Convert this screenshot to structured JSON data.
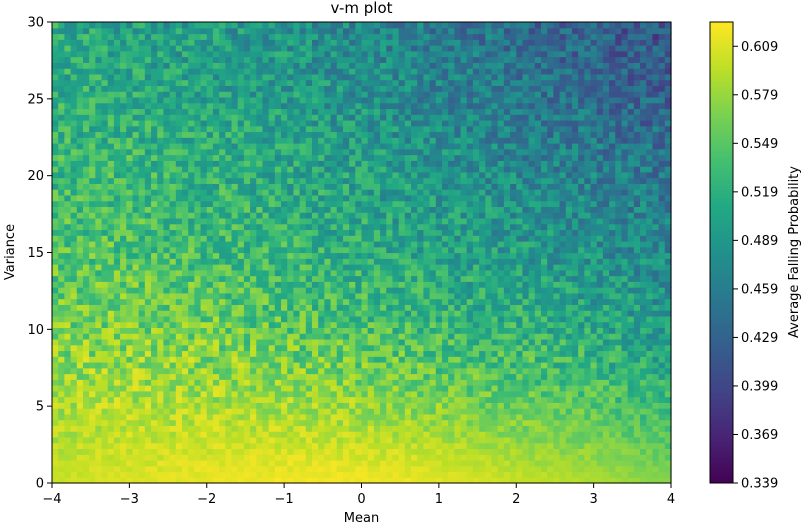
{
  "chart_data": {
    "type": "heatmap",
    "title": "v-m plot",
    "xlabel": "Mean",
    "ylabel": "Variance",
    "colorbar_label": "Average Falling Probability",
    "colormap": "viridis",
    "xlim": [
      -4,
      4
    ],
    "ylim": [
      0,
      30
    ],
    "x_ticks": [
      -4,
      -3,
      -2,
      -1,
      0,
      1,
      2,
      3,
      4
    ],
    "x_tick_labels": [
      "−4",
      "−3",
      "−2",
      "−1",
      "0",
      "1",
      "2",
      "3",
      "4"
    ],
    "y_ticks": [
      0,
      5,
      10,
      15,
      20,
      25,
      30
    ],
    "y_tick_labels": [
      "0",
      "5",
      "10",
      "15",
      "20",
      "25",
      "30"
    ],
    "colorbar_ticks": [
      0.339,
      0.369,
      0.399,
      0.429,
      0.459,
      0.489,
      0.519,
      0.549,
      0.579,
      0.609
    ],
    "colorbar_tick_labels": [
      "0.339",
      "0.369",
      "0.399",
      "0.429",
      "0.459",
      "0.489",
      "0.519",
      "0.549",
      "0.579",
      "0.609"
    ],
    "colorbar_range": [
      0.339,
      0.624
    ],
    "grid": false,
    "trend_summary": {
      "mean_values": [
        -4,
        -3,
        -2,
        -1,
        0,
        1,
        2,
        3,
        4
      ],
      "variance_values": [
        0,
        5,
        10,
        15,
        20,
        25,
        30
      ],
      "approx_probability": [
        [
          0.6,
          0.61,
          0.615,
          0.62,
          0.62,
          0.615,
          0.6,
          0.59,
          0.57
        ],
        [
          0.585,
          0.59,
          0.59,
          0.585,
          0.58,
          0.57,
          0.56,
          0.55,
          0.53
        ],
        [
          0.565,
          0.565,
          0.56,
          0.55,
          0.54,
          0.53,
          0.52,
          0.51,
          0.49
        ],
        [
          0.545,
          0.545,
          0.535,
          0.525,
          0.515,
          0.505,
          0.495,
          0.485,
          0.47
        ],
        [
          0.53,
          0.53,
          0.52,
          0.51,
          0.5,
          0.49,
          0.475,
          0.465,
          0.45
        ],
        [
          0.52,
          0.515,
          0.505,
          0.495,
          0.485,
          0.47,
          0.455,
          0.44,
          0.43
        ],
        [
          0.51,
          0.5,
          0.495,
          0.485,
          0.47,
          0.455,
          0.44,
          0.425,
          0.41
        ]
      ]
    }
  }
}
